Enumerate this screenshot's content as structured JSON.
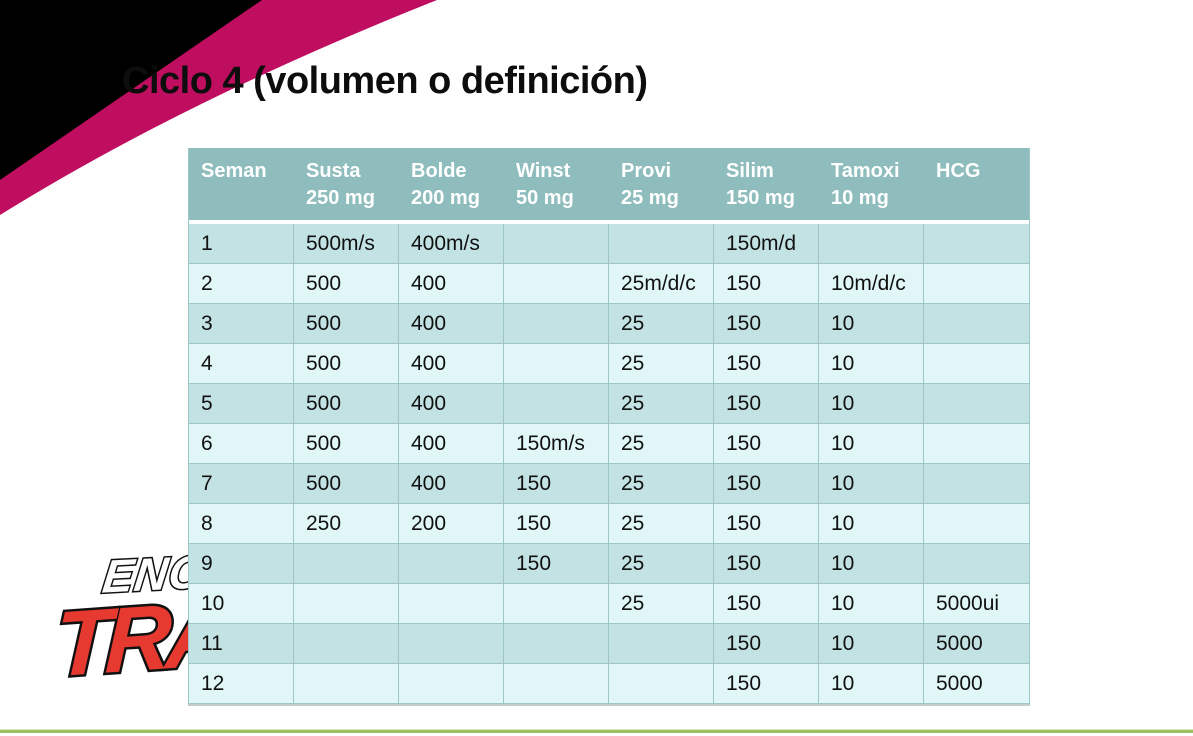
{
  "slide": {
    "title": "Ciclo 4 (volumen o definición)"
  },
  "logo": {
    "line1": "ENC",
    "line2": "TRA"
  },
  "table": {
    "columns": [
      {
        "name": "Seman",
        "dose": ""
      },
      {
        "name": "Susta",
        "dose": "250 mg"
      },
      {
        "name": "Bolde",
        "dose": "200 mg"
      },
      {
        "name": "Winst",
        "dose": "50 mg"
      },
      {
        "name": "Provi",
        "dose": "25 mg"
      },
      {
        "name": "Silim",
        "dose": "150 mg"
      },
      {
        "name": "Tamoxi",
        "dose": "10 mg"
      },
      {
        "name": "HCG",
        "dose": ""
      }
    ],
    "rows": [
      [
        "1",
        "500m/s",
        "400m/s",
        "",
        "",
        "150m/d",
        "",
        ""
      ],
      [
        "2",
        "500",
        "400",
        "",
        "25m/d/c",
        "150",
        "10m/d/c",
        ""
      ],
      [
        "3",
        "500",
        "400",
        "",
        "25",
        "150",
        "10",
        ""
      ],
      [
        "4",
        "500",
        "400",
        "",
        "25",
        "150",
        "10",
        ""
      ],
      [
        "5",
        "500",
        "400",
        "",
        "25",
        "150",
        "10",
        ""
      ],
      [
        "6",
        "500",
        "400",
        "150m/s",
        "25",
        "150",
        "10",
        ""
      ],
      [
        "7",
        "500",
        "400",
        "150",
        "25",
        "150",
        "10",
        ""
      ],
      [
        "8",
        "250",
        "200",
        "150",
        "25",
        "150",
        "10",
        ""
      ],
      [
        "9",
        "",
        "",
        "150",
        "25",
        "150",
        "10",
        ""
      ],
      [
        "10",
        "",
        "",
        "",
        "25",
        "150",
        "10",
        "5000ui"
      ],
      [
        "11",
        "",
        "",
        "",
        "",
        "150",
        "10",
        "5000"
      ],
      [
        "12",
        "",
        "",
        "",
        "",
        "150",
        "10",
        "5000"
      ]
    ]
  },
  "colors": {
    "magenta_swoosh": "#bf0d60",
    "corner_black": "#000000",
    "table_header_bg": "#8fbcbd",
    "table_header_text": "#ffffff",
    "row_dark": "#c2e2e3",
    "row_light": "#e0f6f7",
    "grid_line": "#9cc6c7",
    "bottom_line_green": "#9cc161",
    "logo_red": "#e63a30"
  }
}
